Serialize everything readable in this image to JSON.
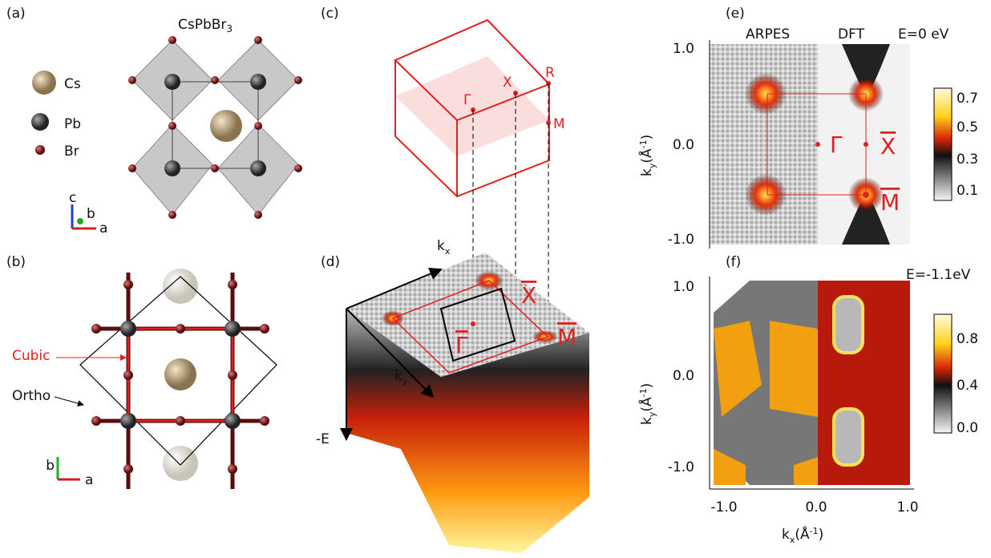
{
  "panels": {
    "a": {
      "label": "(a)",
      "title": {
        "main": "CsPbBr",
        "sub": "3"
      },
      "legend": [
        "Cs",
        "Pb",
        "Br"
      ],
      "axes": [
        "c",
        "b",
        "a"
      ]
    },
    "b": {
      "label": "(b)",
      "cubic": "Cubic",
      "ortho": "Ortho",
      "axes": [
        "b",
        "a"
      ]
    },
    "c": {
      "label": "(c)",
      "points": [
        "Γ",
        "X",
        "R",
        "M"
      ]
    },
    "d": {
      "label": "(d)",
      "points": [
        "Γ",
        "X",
        "M"
      ],
      "kx": {
        "main": "k",
        "sub": "x"
      },
      "ky": {
        "main": "k",
        "sub": "y"
      },
      "energy_axis": "-E"
    },
    "e": {
      "label": "(e)",
      "left": "ARPES",
      "right": "DFT",
      "energy": "E=0 eV",
      "yticks": [
        "1.0",
        "0.0",
        "-1.0"
      ],
      "ylabel": {
        "main": "k",
        "sub": "y",
        "open": "(Å",
        "sup": "-1",
        "close": ")"
      },
      "colorbar": [
        "0.7",
        "0.5",
        "0.3",
        "0.1"
      ],
      "points": [
        "Γ",
        "X",
        "M"
      ]
    },
    "f": {
      "label": "(f)",
      "energy": "E=-1.1eV",
      "yticks": [
        "1.0",
        "0.0",
        "-1.0"
      ],
      "ylabel": {
        "main": "k",
        "sub": "y",
        "open": "(Å",
        "sup": "-1",
        "close": ")"
      },
      "xticks": [
        "-1.0",
        "0.0",
        "1.0"
      ],
      "xlabel": {
        "main": "k",
        "sub": "x",
        "open": "(Å",
        "sup": "-1",
        "close": ")"
      },
      "colorbar": [
        "0.8",
        "0.4",
        "0.0"
      ]
    }
  }
}
